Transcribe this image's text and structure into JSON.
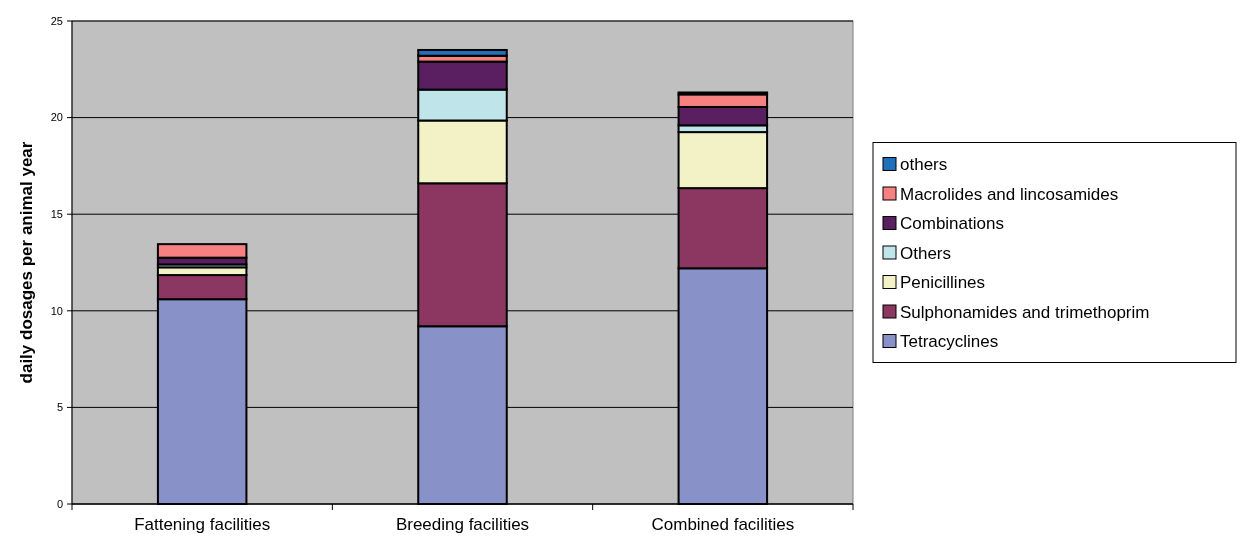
{
  "chart_data": {
    "type": "bar",
    "stacked": true,
    "ylabel": "daily dosages per animal year",
    "categories": [
      "Fattening facilities",
      "Breeding facilities",
      "Combined facilities"
    ],
    "series": [
      {
        "name": "Tetracyclines",
        "color": "#8891c8",
        "values": [
          10.6,
          9.2,
          12.2
        ]
      },
      {
        "name": "Sulphonamides and trimethoprim",
        "color": "#8b3762",
        "values": [
          1.25,
          7.4,
          4.15
        ]
      },
      {
        "name": "Penicillines",
        "color": "#f2f2c6",
        "values": [
          0.4,
          3.25,
          2.9
        ]
      },
      {
        "name": "Others",
        "color": "#bfe4ea",
        "values": [
          0.15,
          1.6,
          0.35
        ]
      },
      {
        "name": "Combinations",
        "color": "#5a1f61",
        "values": [
          0.35,
          1.45,
          0.95
        ]
      },
      {
        "name": "Macrolides and lincosamides",
        "color": "#f78181",
        "values": [
          0.7,
          0.3,
          0.65
        ]
      },
      {
        "name": "others",
        "color": "#1f6fba",
        "values": [
          0,
          0.3,
          0.1
        ]
      }
    ],
    "ylim": [
      0,
      25
    ],
    "yticks": [
      0,
      5,
      10,
      15,
      20,
      25
    ],
    "grid": "y",
    "legend": "right"
  }
}
